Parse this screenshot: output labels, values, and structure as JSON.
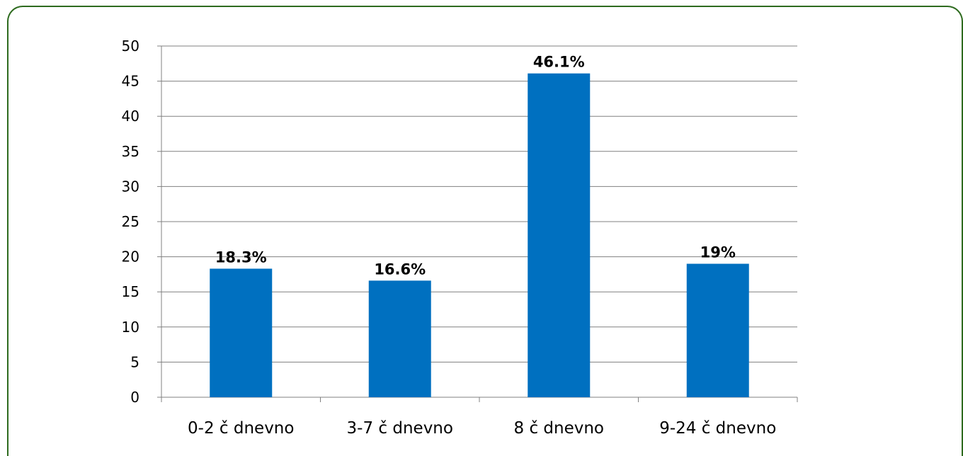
{
  "chart_data": {
    "type": "bar",
    "title": "",
    "xlabel": "",
    "ylabel": "",
    "categories": [
      "0-2 č dnevno",
      "3-7 č dnevno",
      "8 č dnevno",
      "9-24 č dnevno"
    ],
    "values": [
      18.3,
      16.6,
      46.1,
      19
    ],
    "data_labels": [
      "18.3%",
      "16.6%",
      "46.1%",
      "19%"
    ],
    "ylim": [
      0,
      50
    ],
    "yticks": [
      0,
      5,
      10,
      15,
      20,
      25,
      30,
      35,
      40,
      45,
      50
    ],
    "grid": true,
    "legend": "none",
    "colors": {
      "bar": "#0070c0",
      "grid": "#808080",
      "frame_border": "#2e6b1f"
    }
  }
}
